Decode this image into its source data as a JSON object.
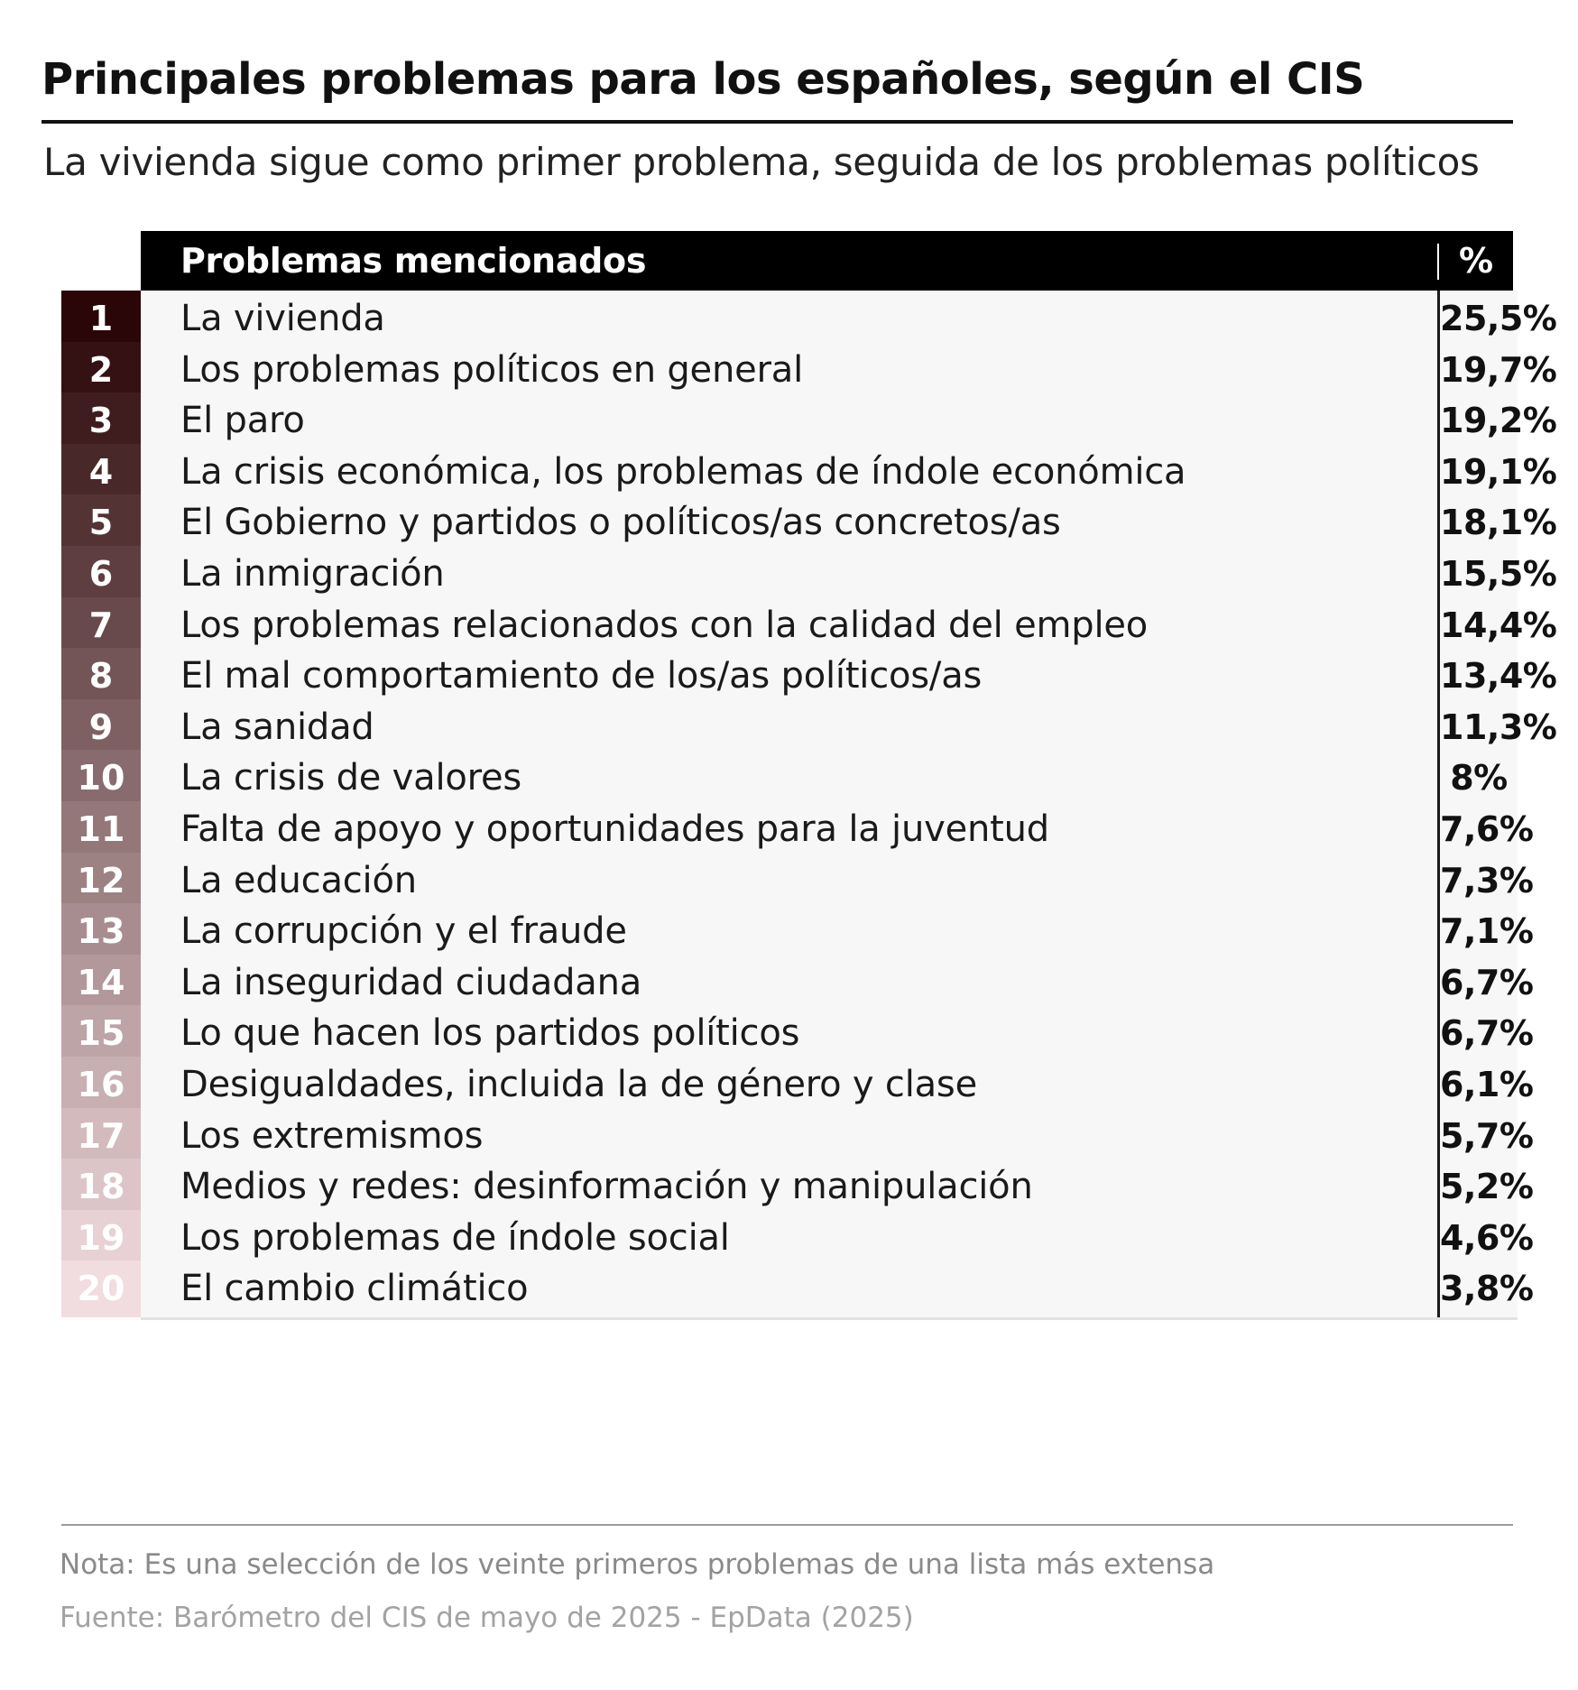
{
  "title": "Principales problemas para los españoles, según el CIS",
  "subtitle": "La vivienda sigue como primer problema, seguida de los problemas políticos",
  "colors": {
    "header_bg": "#000000",
    "row_bg": "#f7f7f7",
    "rank_scale_dark": "#2a0608",
    "rank_scale_light": "#f1dcdf"
  },
  "chart_data": {
    "type": "table",
    "title": "Principales problemas para los españoles, según el CIS",
    "subtitle": "La vivienda sigue como primer problema, seguida de los problemas políticos",
    "columns": [
      "Problemas mencionados",
      "%"
    ],
    "rows": [
      {
        "rank": "1",
        "problem": "La vivienda",
        "value": 25.5,
        "label": "25,5%"
      },
      {
        "rank": "2",
        "problem": "Los problemas políticos en general",
        "value": 19.7,
        "label": "19,7%"
      },
      {
        "rank": "3",
        "problem": "El paro",
        "value": 19.2,
        "label": "19,2%"
      },
      {
        "rank": "4",
        "problem": "La crisis económica, los problemas de índole económica",
        "value": 19.1,
        "label": "19,1%"
      },
      {
        "rank": "5",
        "problem": "El Gobierno y partidos o políticos/as concretos/as",
        "value": 18.1,
        "label": "18,1%"
      },
      {
        "rank": "6",
        "problem": "La inmigración",
        "value": 15.5,
        "label": "15,5%"
      },
      {
        "rank": "7",
        "problem": "Los problemas relacionados con la calidad del empleo",
        "value": 14.4,
        "label": "14,4%"
      },
      {
        "rank": "8",
        "problem": "El mal comportamiento de los/as políticos/as",
        "value": 13.4,
        "label": "13,4%"
      },
      {
        "rank": "9",
        "problem": "La sanidad",
        "value": 11.3,
        "label": "11,3%"
      },
      {
        "rank": "10",
        "problem": "La crisis de valores",
        "value": 8,
        "label": "8%"
      },
      {
        "rank": "11",
        "problem": "Falta de apoyo y oportunidades para la juventud",
        "value": 7.6,
        "label": "7,6%"
      },
      {
        "rank": "12",
        "problem": "La educación",
        "value": 7.3,
        "label": "7,3%"
      },
      {
        "rank": "13",
        "problem": "La corrupción y el fraude",
        "value": 7.1,
        "label": "7,1%"
      },
      {
        "rank": "14",
        "problem": "La inseguridad ciudadana",
        "value": 6.7,
        "label": "6,7%"
      },
      {
        "rank": "15",
        "problem": "Lo que hacen los partidos políticos",
        "value": 6.7,
        "label": "6,7%"
      },
      {
        "rank": "16",
        "problem": "Desigualdades, incluida la de género y clase",
        "value": 6.1,
        "label": "6,1%"
      },
      {
        "rank": "17",
        "problem": "Los extremismos",
        "value": 5.7,
        "label": "5,7%"
      },
      {
        "rank": "18",
        "problem": "Medios y redes: desinformación y manipulación",
        "value": 5.2,
        "label": "5,2%"
      },
      {
        "rank": "19",
        "problem": "Los problemas de índole social",
        "value": 4.6,
        "label": "4,6%"
      },
      {
        "rank": "20",
        "problem": "El cambio climático",
        "value": 3.8,
        "label": "3,8%"
      }
    ]
  },
  "footer": {
    "note": "Nota: Es una selección de los veinte primeros problemas de una lista más extensa",
    "source": "Fuente: Barómetro del CIS de mayo de 2025 - EpData (2025)"
  }
}
